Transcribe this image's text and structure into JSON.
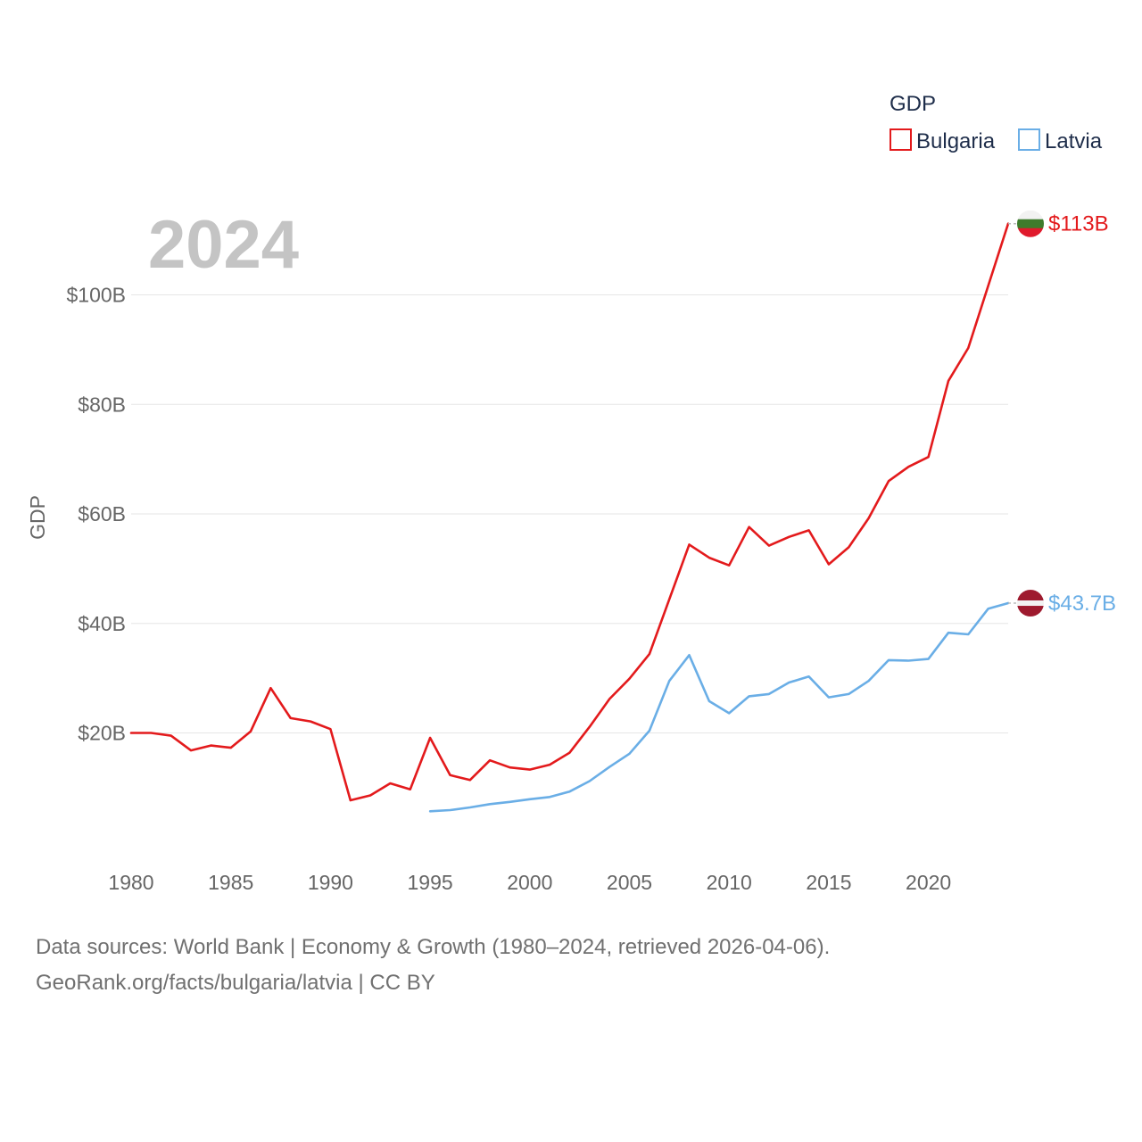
{
  "chart_data": {
    "type": "line",
    "year_label": "2024",
    "ylabel": "GDP",
    "legend": {
      "title": "GDP",
      "placement": "top-right"
    },
    "xlim": [
      1980,
      2024
    ],
    "ylim": [
      0,
      120
    ],
    "x_ticks": [
      "1980",
      "1985",
      "1990",
      "1995",
      "2000",
      "2005",
      "2010",
      "2015",
      "2020"
    ],
    "y_ticks": [
      {
        "value": 20,
        "label": "$20B"
      },
      {
        "value": 40,
        "label": "$40B"
      },
      {
        "value": 60,
        "label": "$60B"
      },
      {
        "value": 80,
        "label": "$80B"
      },
      {
        "value": 100,
        "label": "$100B"
      }
    ],
    "series": [
      {
        "name": "Bulgaria",
        "color": "#e31a1c",
        "end_label": "$113B",
        "x": [
          1980,
          1981,
          1982,
          1983,
          1984,
          1985,
          1986,
          1987,
          1988,
          1989,
          1990,
          1991,
          1992,
          1993,
          1994,
          1995,
          1996,
          1997,
          1998,
          1999,
          2000,
          2001,
          2002,
          2003,
          2004,
          2005,
          2006,
          2007,
          2008,
          2009,
          2010,
          2011,
          2012,
          2013,
          2014,
          2015,
          2016,
          2017,
          2018,
          2019,
          2020,
          2021,
          2022,
          2023,
          2024
        ],
        "values": [
          20.0,
          20.0,
          19.5,
          16.8,
          17.7,
          17.3,
          20.3,
          28.2,
          22.7,
          22.1,
          20.7,
          7.7,
          8.6,
          10.8,
          9.7,
          19.1,
          12.3,
          11.4,
          15.0,
          13.7,
          13.3,
          14.2,
          16.4,
          21.1,
          26.2,
          29.9,
          34.4,
          44.4,
          54.4,
          52.0,
          50.6,
          57.6,
          54.2,
          55.8,
          57.0,
          50.8,
          53.9,
          59.2,
          66.0,
          68.6,
          70.4,
          84.3,
          90.3,
          101.7,
          113.0
        ]
      },
      {
        "name": "Latvia",
        "color": "#6aaee6",
        "end_label": "$43.7B",
        "x": [
          1995,
          1996,
          1997,
          1998,
          1999,
          2000,
          2001,
          2002,
          2003,
          2004,
          2005,
          2006,
          2007,
          2008,
          2009,
          2010,
          2011,
          2012,
          2013,
          2014,
          2015,
          2016,
          2017,
          2018,
          2019,
          2020,
          2021,
          2022,
          2023,
          2024
        ],
        "values": [
          5.7,
          5.9,
          6.4,
          7.0,
          7.4,
          7.9,
          8.3,
          9.3,
          11.2,
          13.8,
          16.2,
          20.4,
          29.5,
          34.2,
          25.8,
          23.6,
          26.7,
          27.1,
          29.2,
          30.3,
          26.5,
          27.1,
          29.5,
          33.3,
          33.2,
          33.5,
          38.3,
          38.0,
          42.7,
          43.7
        ]
      }
    ]
  },
  "source": {
    "line1": "Data sources: World Bank | Economy & Growth (1980–2024, retrieved 2026-04-06).",
    "line2": "GeoRank.org/facts/bulgaria/latvia | CC BY"
  },
  "flags": {
    "bulgaria": [
      "#f2f2f2",
      "#3d7c2c",
      "#e01a2c"
    ],
    "latvia": [
      "#9e1a2e",
      "#f2f2f2",
      "#9e1a2e"
    ]
  }
}
